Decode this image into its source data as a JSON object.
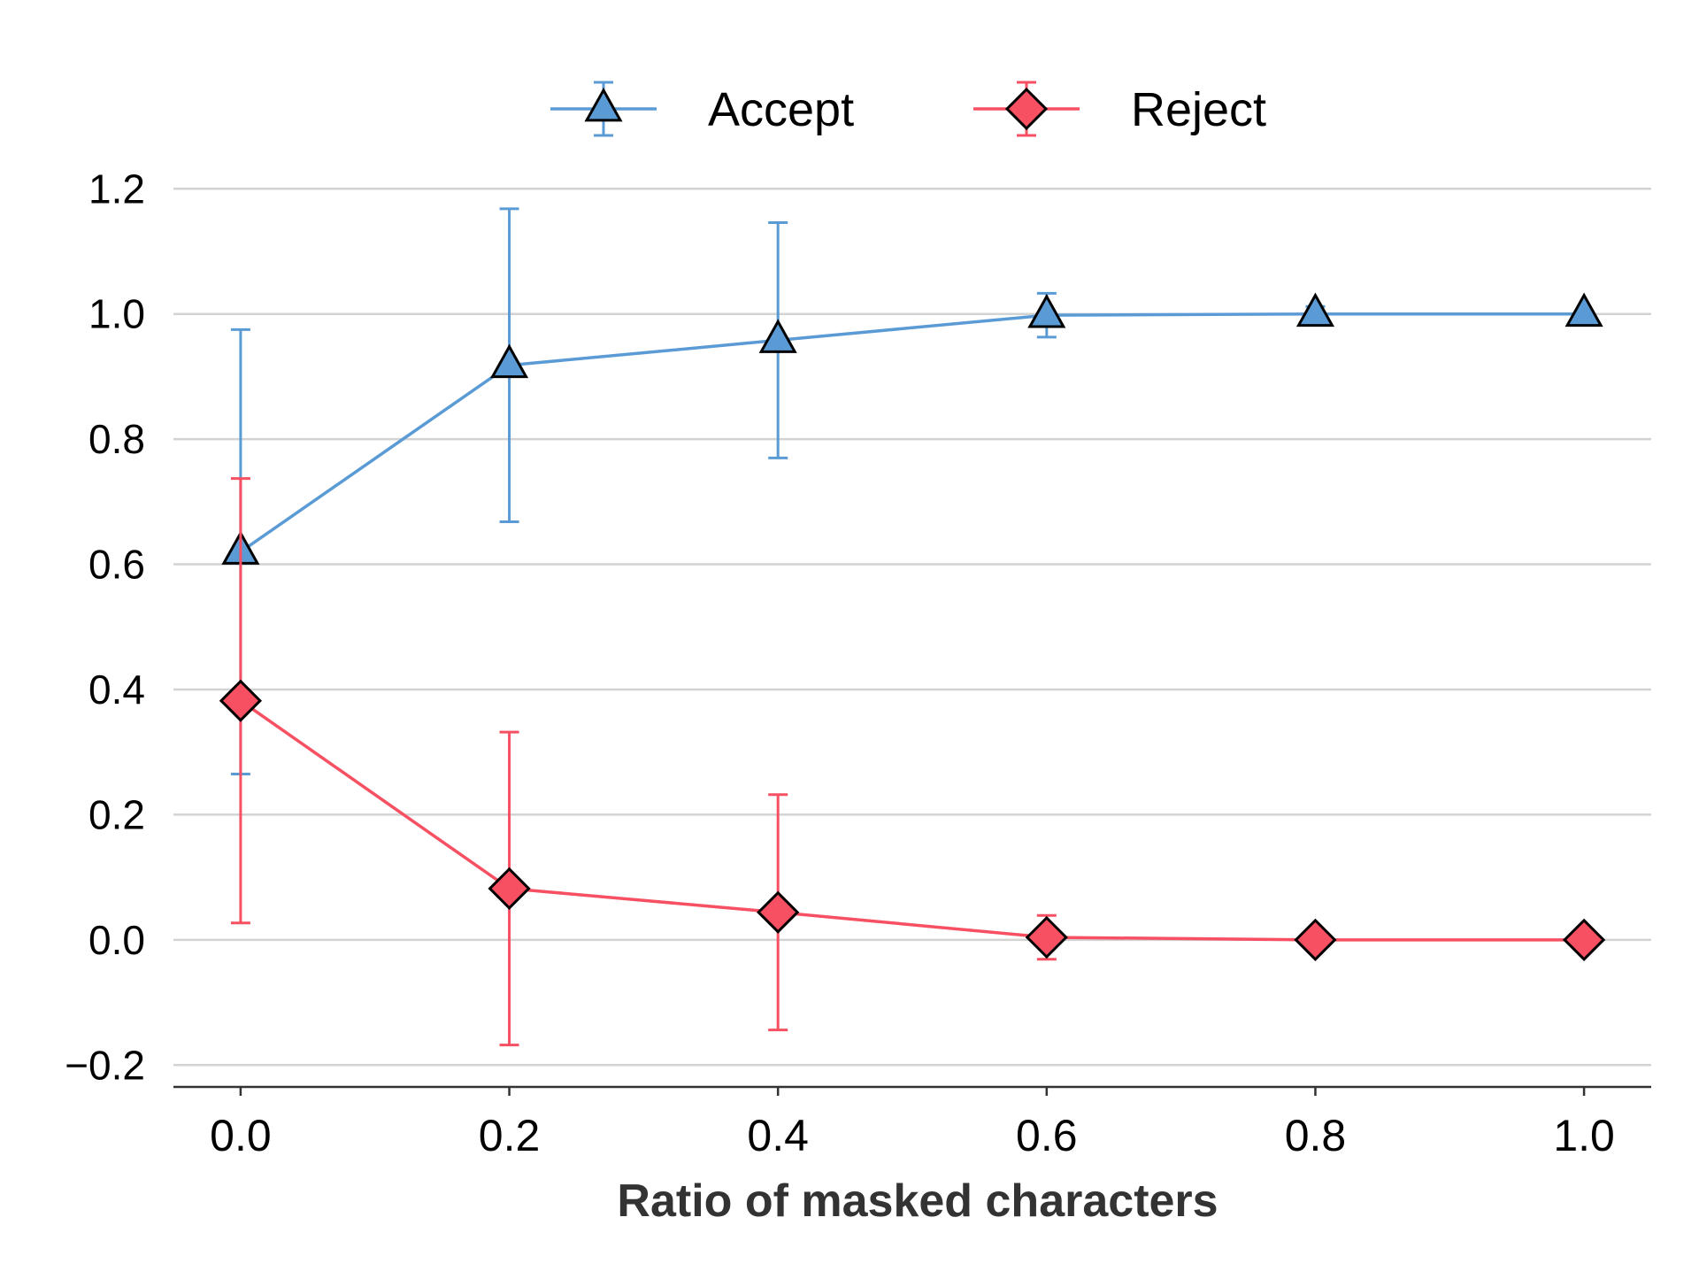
{
  "chart_data": {
    "type": "line",
    "title": "",
    "xlabel": "Ratio of masked characters",
    "ylabel": "",
    "x": [
      0.0,
      0.2,
      0.4,
      0.6,
      0.8,
      1.0
    ],
    "xticks": [
      "0.0",
      "0.2",
      "0.4",
      "0.6",
      "0.8",
      "1.0"
    ],
    "yticks": [
      "−0.2",
      "0.0",
      "0.2",
      "0.4",
      "0.6",
      "0.8",
      "1.0",
      "1.2"
    ],
    "xlim": [
      -0.05,
      1.05
    ],
    "ylim": [
      -0.235,
      1.24
    ],
    "grid": "horizontal",
    "legend_position": "top-center",
    "series": [
      {
        "name": "Accept",
        "color": "#5b9bd5",
        "marker": "triangle",
        "values": [
          0.62,
          0.918,
          0.958,
          0.998,
          1.0,
          1.0
        ],
        "error": [
          0.355,
          0.25,
          0.188,
          0.035,
          0.012,
          0.0
        ]
      },
      {
        "name": "Reject",
        "color": "#f65062",
        "marker": "diamond",
        "values": [
          0.382,
          0.082,
          0.044,
          0.004,
          0.0,
          0.0
        ],
        "error": [
          0.355,
          0.25,
          0.188,
          0.035,
          0.0,
          0.0
        ]
      }
    ]
  }
}
